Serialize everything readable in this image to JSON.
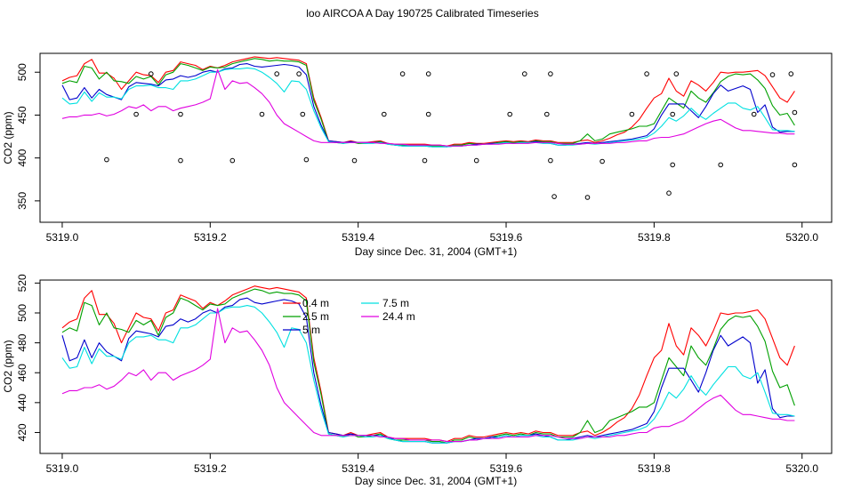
{
  "title": "loo AIRCOA A  Day 190725  Calibrated Timeseries",
  "colors": {
    "h0_4": "#ff0000",
    "h2_5": "#00a000",
    "h5": "#0000cc",
    "h7_5": "#00e0e0",
    "h24_4": "#e000e0",
    "points": "#000000"
  },
  "chart_data": [
    {
      "type": "scatter",
      "title": "",
      "xlabel": "Day since Dec. 31, 2004 (GMT+1)",
      "ylabel": "CO2 (ppm)",
      "xlim": [
        5318.97,
        5320.04
      ],
      "ylim": [
        325,
        522
      ],
      "xticks": [
        5319.0,
        5319.2,
        5319.4,
        5319.6,
        5319.8,
        5320.0
      ],
      "xtick_labels": [
        "5319.0",
        "5319.2",
        "5319.4",
        "5319.6",
        "5319.8",
        "5320.0"
      ],
      "yticks": [
        350,
        400,
        450,
        500
      ],
      "ytick_labels": [
        "350",
        "400",
        "450",
        "500"
      ],
      "grid": false,
      "series": [
        {
          "color_key": "h0_4",
          "line": true
        },
        {
          "color_key": "h2_5",
          "line": true
        },
        {
          "color_key": "h5",
          "line": true
        },
        {
          "color_key": "h7_5",
          "line": true
        },
        {
          "color_key": "h24_4",
          "line": true
        },
        {
          "color_key": "points",
          "line": false,
          "points": [
            [
              5319.06,
              398
            ],
            [
              5319.1,
              451
            ],
            [
              5319.12,
              498
            ],
            [
              5319.16,
              397
            ],
            [
              5319.16,
              451
            ],
            [
              5319.23,
              397
            ],
            [
              5319.27,
              451
            ],
            [
              5319.29,
              498
            ],
            [
              5319.32,
              498
            ],
            [
              5319.325,
              451
            ],
            [
              5319.33,
              398
            ],
            [
              5319.395,
              397
            ],
            [
              5319.435,
              451
            ],
            [
              5319.46,
              498
            ],
            [
              5319.49,
              397
            ],
            [
              5319.495,
              451
            ],
            [
              5319.495,
              498
            ],
            [
              5319.56,
              397
            ],
            [
              5319.605,
              451
            ],
            [
              5319.625,
              498
            ],
            [
              5319.655,
              451
            ],
            [
              5319.66,
              498
            ],
            [
              5319.66,
              397
            ],
            [
              5319.665,
              355
            ],
            [
              5319.71,
              354
            ],
            [
              5319.73,
              396
            ],
            [
              5319.77,
              451
            ],
            [
              5319.79,
              498
            ],
            [
              5319.82,
              359
            ],
            [
              5319.825,
              392
            ],
            [
              5319.825,
              451
            ],
            [
              5319.83,
              498
            ],
            [
              5319.89,
              392
            ],
            [
              5319.935,
              451
            ],
            [
              5319.96,
              497
            ],
            [
              5319.985,
              498
            ],
            [
              5319.99,
              453
            ],
            [
              5319.99,
              392
            ]
          ]
        }
      ]
    },
    {
      "type": "line",
      "title": "",
      "xlabel": "Day since Dec. 31, 2004 (GMT+1)",
      "ylabel": "CO2 (ppm)",
      "xlim": [
        5318.97,
        5320.04
      ],
      "ylim": [
        406,
        522
      ],
      "xticks": [
        5319.0,
        5319.2,
        5319.4,
        5319.6,
        5319.8,
        5320.0
      ],
      "xtick_labels": [
        "5319.0",
        "5319.2",
        "5319.4",
        "5319.6",
        "5319.8",
        "5320.0"
      ],
      "yticks": [
        420,
        440,
        460,
        480,
        500,
        520
      ],
      "ytick_labels": [
        "420",
        "440",
        "460",
        "480",
        "500",
        "520"
      ],
      "grid": false,
      "legend": {
        "placement": "top-center",
        "entries": [
          {
            "label": "0.4 m",
            "color_key": "h0_4"
          },
          {
            "label": "2.5 m",
            "color_key": "h2_5"
          },
          {
            "label": "5 m",
            "color_key": "h5"
          },
          {
            "label": "7.5 m",
            "color_key": "h7_5"
          },
          {
            "label": "24.4 m",
            "color_key": "h24_4"
          }
        ]
      },
      "x": [
        5319.0,
        5319.01,
        5319.02,
        5319.03,
        5319.04,
        5319.05,
        5319.06,
        5319.07,
        5319.08,
        5319.09,
        5319.1,
        5319.11,
        5319.12,
        5319.13,
        5319.14,
        5319.15,
        5319.16,
        5319.17,
        5319.18,
        5319.19,
        5319.2,
        5319.21,
        5319.22,
        5319.23,
        5319.24,
        5319.25,
        5319.26,
        5319.27,
        5319.28,
        5319.29,
        5319.3,
        5319.31,
        5319.32,
        5319.33,
        5319.34,
        5319.35,
        5319.36,
        5319.37,
        5319.38,
        5319.39,
        5319.4,
        5319.41,
        5319.42,
        5319.43,
        5319.44,
        5319.45,
        5319.46,
        5319.47,
        5319.48,
        5319.49,
        5319.5,
        5319.51,
        5319.52,
        5319.53,
        5319.54,
        5319.55,
        5319.56,
        5319.57,
        5319.58,
        5319.59,
        5319.6,
        5319.61,
        5319.62,
        5319.63,
        5319.64,
        5319.65,
        5319.66,
        5319.67,
        5319.68,
        5319.69,
        5319.7,
        5319.71,
        5319.72,
        5319.73,
        5319.74,
        5319.75,
        5319.76,
        5319.77,
        5319.78,
        5319.79,
        5319.8,
        5319.81,
        5319.82,
        5319.83,
        5319.84,
        5319.85,
        5319.86,
        5319.87,
        5319.88,
        5319.89,
        5319.9,
        5319.91,
        5319.92,
        5319.93,
        5319.94,
        5319.95,
        5319.96,
        5319.97,
        5319.98,
        5319.99
      ],
      "series": [
        {
          "name": "0.4 m",
          "color_key": "h0_4",
          "values": [
            490,
            494,
            496,
            510,
            515,
            499,
            499,
            493,
            480,
            490,
            500,
            497,
            496,
            488,
            500,
            502,
            512,
            510,
            508,
            503,
            507,
            505,
            508,
            512,
            514,
            516,
            518,
            517,
            516,
            517,
            516,
            515,
            514,
            510,
            470,
            447,
            420,
            419,
            418,
            420,
            418,
            418,
            419,
            420,
            417,
            416,
            416,
            416,
            416,
            416,
            415,
            415,
            414,
            416,
            416,
            418,
            417,
            417,
            418,
            419,
            420,
            419,
            420,
            419,
            421,
            420,
            420,
            418,
            418,
            418,
            420,
            421,
            418,
            420,
            423,
            427,
            430,
            436,
            445,
            458,
            470,
            475,
            493,
            478,
            472,
            490,
            485,
            478,
            488,
            500,
            499,
            500,
            500,
            501,
            502,
            496,
            483,
            470,
            465,
            478
          ]
        },
        {
          "name": "2.5 m",
          "color_key": "h2_5",
          "values": [
            487,
            490,
            488,
            507,
            505,
            492,
            500,
            490,
            489,
            487,
            495,
            492,
            495,
            485,
            497,
            500,
            510,
            508,
            505,
            502,
            506,
            505,
            506,
            510,
            512,
            514,
            516,
            515,
            513,
            514,
            513,
            513,
            512,
            508,
            467,
            445,
            419,
            418,
            417,
            419,
            417,
            417,
            418,
            419,
            416,
            415,
            415,
            415,
            415,
            415,
            414,
            414,
            413,
            415,
            415,
            417,
            416,
            416,
            417,
            418,
            419,
            418,
            419,
            418,
            420,
            419,
            419,
            417,
            417,
            417,
            420,
            428,
            420,
            422,
            428,
            430,
            432,
            434,
            437,
            437,
            440,
            455,
            470,
            464,
            458,
            478,
            470,
            465,
            476,
            489,
            495,
            498,
            497,
            498,
            491,
            481,
            461,
            450,
            452,
            438
          ]
        },
        {
          "name": "5 m",
          "color_key": "h5",
          "values": [
            485,
            468,
            470,
            482,
            470,
            480,
            474,
            471,
            468,
            483,
            488,
            487,
            486,
            484,
            491,
            492,
            496,
            494,
            496,
            500,
            502,
            500,
            504,
            505,
            509,
            510,
            507,
            506,
            507,
            508,
            509,
            508,
            506,
            497,
            460,
            438,
            420,
            419,
            418,
            419,
            418,
            418,
            418,
            418,
            417,
            415,
            414,
            414,
            414,
            414,
            413,
            413,
            413,
            414,
            414,
            415,
            416,
            416,
            417,
            417,
            418,
            417,
            418,
            418,
            419,
            418,
            417,
            415,
            415,
            416,
            417,
            418,
            417,
            418,
            419,
            420,
            421,
            422,
            424,
            426,
            434,
            450,
            463,
            463,
            463,
            455,
            447,
            460,
            475,
            485,
            478,
            481,
            484,
            480,
            453,
            462,
            436,
            430,
            431,
            431
          ]
        },
        {
          "name": "7.5 m",
          "color_key": "h7_5",
          "values": [
            470,
            463,
            464,
            477,
            466,
            476,
            471,
            471,
            469,
            480,
            484,
            484,
            485,
            482,
            482,
            480,
            490,
            490,
            492,
            496,
            500,
            500,
            503,
            504,
            504,
            505,
            504,
            500,
            494,
            487,
            477,
            490,
            489,
            480,
            455,
            435,
            419,
            418,
            417,
            418,
            418,
            417,
            417,
            418,
            416,
            415,
            414,
            414,
            414,
            414,
            413,
            413,
            413,
            414,
            414,
            415,
            415,
            416,
            416,
            417,
            418,
            417,
            418,
            418,
            418,
            417,
            417,
            415,
            415,
            415,
            416,
            417,
            416,
            417,
            418,
            419,
            420,
            421,
            422,
            424,
            429,
            437,
            447,
            443,
            449,
            458,
            450,
            445,
            452,
            458,
            464,
            464,
            458,
            456,
            460,
            447,
            433,
            432,
            432,
            431
          ]
        },
        {
          "name": "24.4 m",
          "color_key": "h24_4",
          "values": [
            446,
            448,
            448,
            450,
            450,
            452,
            449,
            451,
            455,
            460,
            458,
            462,
            455,
            460,
            460,
            455,
            458,
            460,
            462,
            465,
            469,
            503,
            480,
            490,
            487,
            488,
            482,
            475,
            465,
            450,
            440,
            435,
            430,
            425,
            420,
            418,
            418,
            418,
            418,
            418,
            418,
            418,
            418,
            417,
            417,
            416,
            416,
            415,
            415,
            415,
            415,
            415,
            414,
            414,
            414,
            415,
            415,
            416,
            416,
            416,
            417,
            417,
            417,
            417,
            418,
            418,
            418,
            417,
            416,
            416,
            416,
            417,
            417,
            417,
            417,
            418,
            418,
            419,
            420,
            420,
            423,
            424,
            424,
            426,
            428,
            432,
            436,
            440,
            443,
            445,
            440,
            435,
            432,
            432,
            431,
            430,
            429,
            429,
            428,
            428
          ]
        }
      ]
    }
  ]
}
